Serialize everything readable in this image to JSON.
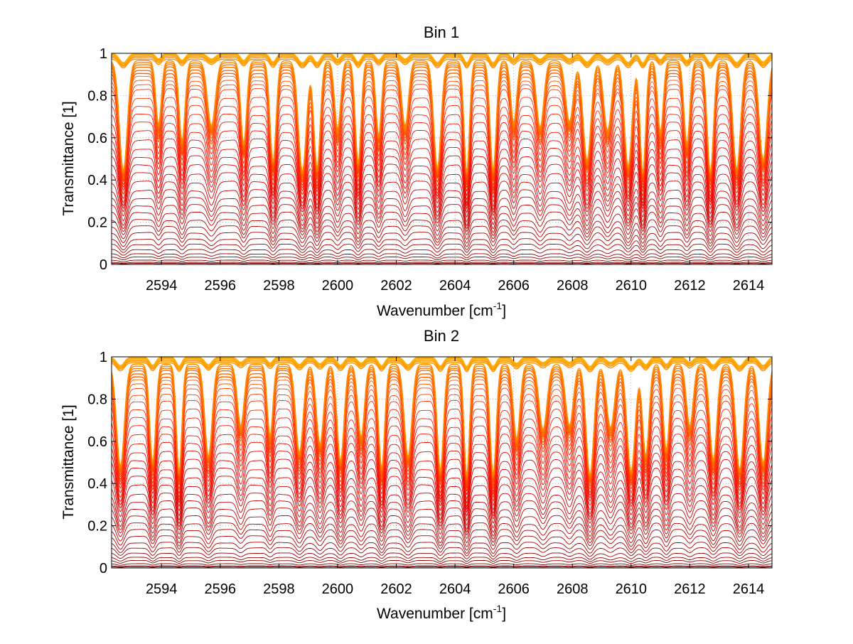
{
  "chart_data": [
    {
      "type": "line",
      "title": "Bin 1",
      "xlabel": "Wavenumber [cm",
      "xlabel_sup": "-1",
      "xlabel_end": "]",
      "ylabel": "Transmittance [1]",
      "xlim": [
        2592.3,
        2614.8
      ],
      "ylim": [
        0,
        1
      ],
      "x_ticks": [
        2594,
        2596,
        2598,
        2600,
        2602,
        2604,
        2606,
        2608,
        2610,
        2612,
        2614
      ],
      "y_ticks": [
        0,
        0.2,
        0.4,
        0.6,
        0.8,
        1
      ],
      "y_tick_labels": [
        "0",
        "0.2",
        "0.4",
        "0.6",
        "0.8",
        "1"
      ],
      "grid": "dotted",
      "absorption_line_centers": [
        2592.7,
        2593.9,
        2594.7,
        2595.7,
        2596.8,
        2597.8,
        2598.8,
        2599.3,
        2600.0,
        2600.7,
        2601.4,
        2602.3,
        2603.4,
        2604.4,
        2605.3,
        2606.0,
        2606.9,
        2607.9,
        2608.5,
        2609.2,
        2609.9,
        2610.4,
        2611.0,
        2611.9,
        2612.7,
        2613.6,
        2614.5
      ],
      "band_transmittance_levels": [
        0.005,
        0.01,
        0.02,
        0.035,
        0.05,
        0.07,
        0.095,
        0.12,
        0.15,
        0.18,
        0.21,
        0.245,
        0.28,
        0.315,
        0.35,
        0.39,
        0.43,
        0.47,
        0.51,
        0.55,
        0.59,
        0.63,
        0.67,
        0.71,
        0.75,
        0.79,
        0.83,
        0.85,
        0.87,
        0.89,
        0.905,
        0.92,
        0.935,
        0.945,
        0.955,
        0.965,
        0.972,
        0.98,
        0.986,
        0.992,
        0.996,
        0.999
      ],
      "color_scale": [
        "#7a0000",
        "#a00000",
        "#c00000",
        "#e00000",
        "#ff2000",
        "#ff5a00",
        "#ff8c00",
        "#ffb000"
      ]
    },
    {
      "type": "line",
      "title": "Bin 2",
      "xlabel": "Wavenumber [cm",
      "xlabel_sup": "-1",
      "xlabel_end": "]",
      "ylabel": "Transmittance [1]",
      "xlim": [
        2592.3,
        2614.8
      ],
      "ylim": [
        0,
        1
      ],
      "x_ticks": [
        2594,
        2596,
        2598,
        2600,
        2602,
        2604,
        2606,
        2608,
        2610,
        2612,
        2614
      ],
      "y_ticks": [
        0,
        0.2,
        0.4,
        0.6,
        0.8,
        1
      ],
      "y_tick_labels": [
        "0",
        "0.2",
        "0.4",
        "0.6",
        "0.8",
        "1"
      ],
      "grid": "dotted",
      "absorption_line_centers": [
        2592.6,
        2593.7,
        2594.6,
        2595.6,
        2596.7,
        2597.7,
        2598.7,
        2599.4,
        2600.1,
        2600.8,
        2601.5,
        2602.4,
        2603.5,
        2604.4,
        2605.3,
        2606.1,
        2607.0,
        2607.9,
        2608.6,
        2609.3,
        2610.0,
        2610.5,
        2611.2,
        2612.0,
        2612.8,
        2613.7,
        2614.5
      ],
      "band_transmittance_levels": [
        0.005,
        0.01,
        0.02,
        0.035,
        0.05,
        0.07,
        0.095,
        0.12,
        0.15,
        0.18,
        0.21,
        0.245,
        0.28,
        0.315,
        0.35,
        0.39,
        0.43,
        0.47,
        0.51,
        0.55,
        0.59,
        0.63,
        0.67,
        0.71,
        0.75,
        0.79,
        0.82,
        0.85,
        0.87,
        0.89,
        0.905,
        0.92,
        0.935,
        0.945,
        0.955,
        0.965,
        0.972,
        0.98,
        0.986,
        0.992,
        0.996,
        0.999
      ],
      "color_scale": [
        "#7a0000",
        "#a00000",
        "#c00000",
        "#e00000",
        "#ff2000",
        "#ff5a00",
        "#ff8c00",
        "#ffb000"
      ]
    }
  ]
}
